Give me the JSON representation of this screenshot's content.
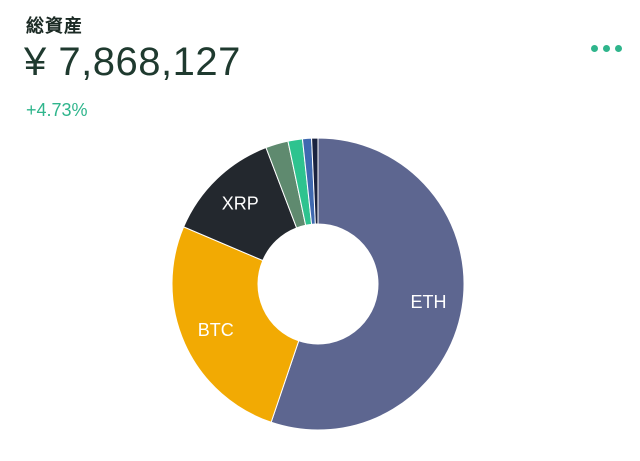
{
  "header": {
    "title": "総資産",
    "total": "¥ 7,868,127",
    "change": "+4.73%"
  },
  "colors": {
    "accent": "#2fb58c",
    "eth": "#5d6690",
    "btc": "#f2aa03",
    "xrp": "#23282e",
    "other1": "#5f8a6f",
    "other2": "#2ec38f",
    "other3": "#3f69b0",
    "other4": "#1a2340"
  },
  "chart_data": {
    "type": "pie",
    "style": "donut",
    "slices": [
      {
        "label": "ETH",
        "value": 55.2,
        "color": "#5d6690"
      },
      {
        "label": "BTC",
        "value": 26.2,
        "color": "#f2aa03"
      },
      {
        "label": "XRP",
        "value": 12.8,
        "color": "#23282e"
      },
      {
        "label": "",
        "value": 2.5,
        "color": "#5f8a6f"
      },
      {
        "label": "",
        "value": 1.6,
        "color": "#2ec38f"
      },
      {
        "label": "",
        "value": 1.0,
        "color": "#3f69b0"
      },
      {
        "label": "",
        "value": 0.7,
        "color": "#1a2340"
      }
    ]
  }
}
